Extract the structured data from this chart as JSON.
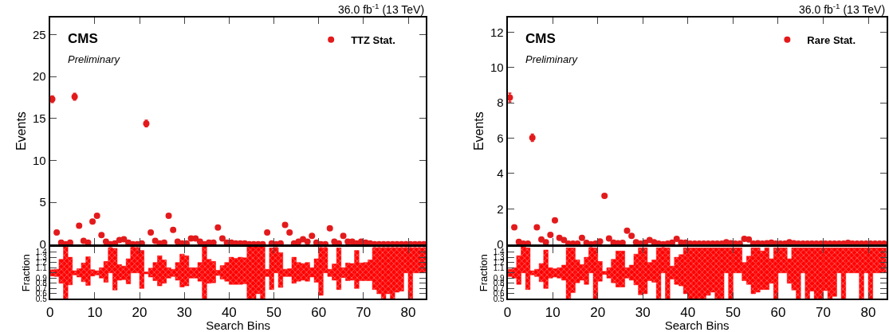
{
  "chart_data": [
    {
      "type": "scatter",
      "title": "36.0 fb$^{-1}$ (13 TeV)",
      "ylabel": "Events",
      "annotations": [
        "CMS",
        "Preliminary"
      ],
      "marker": "circle",
      "legend": "top right",
      "tick_labels": "y",
      "xlim": [
        0,
        84
      ],
      "xticks": [
        0,
        10,
        20,
        30,
        40,
        50,
        60,
        70,
        80
      ],
      "ylim": [
        0,
        27
      ],
      "yticks": [
        0,
        5,
        10,
        15,
        20,
        25
      ],
      "x": [
        0.5,
        1.5,
        2.5,
        3.5,
        4.5,
        5.5,
        6.5,
        7.5,
        8.5,
        9.5,
        10.5,
        11.5,
        12.5,
        13.5,
        14.5,
        15.5,
        16.5,
        17.5,
        18.5,
        19.5,
        20.5,
        21.5,
        22.5,
        23.5,
        24.5,
        25.5,
        26.5,
        27.5,
        28.5,
        29.5,
        30.5,
        31.5,
        32.5,
        33.5,
        34.5,
        35.5,
        36.5,
        37.5,
        38.5,
        39.5,
        40.5,
        41.5,
        42.5,
        43.5,
        44.5,
        45.5,
        46.5,
        47.5,
        48.5,
        49.5,
        50.5,
        51.5,
        52.5,
        53.5,
        54.5,
        55.5,
        56.5,
        57.5,
        58.5,
        59.5,
        60.5,
        61.5,
        62.5,
        63.5,
        64.5,
        65.5,
        66.5,
        67.5,
        68.5,
        69.5,
        70.5,
        71.5,
        72.5,
        73.5,
        74.5,
        75.5,
        76.5,
        77.5,
        78.5,
        79.5,
        80.5,
        81.5,
        82.5,
        83.5
      ],
      "series": [
        {
          "name": "TTZ Stat.",
          "color": "#e31a1c",
          "values": [
            17.3,
            1.4,
            0.2,
            0,
            0.2,
            17.6,
            2.2,
            0.4,
            0.2,
            2.7,
            3.4,
            1.1,
            0.3,
            0,
            0.1,
            0.5,
            0.6,
            0.2,
            0,
            0,
            0.1,
            14.4,
            1.4,
            0.4,
            0.1,
            0.2,
            3.4,
            1.7,
            0.3,
            0.1,
            0.1,
            0.7,
            0.7,
            0.3,
            0,
            0.2,
            0.2,
            2.0,
            0.7,
            0.2,
            0.2,
            0.1,
            0.1,
            0.1,
            0,
            0,
            0,
            0,
            1.4,
            0.1,
            0,
            0.1,
            2.3,
            1.4,
            0.1,
            0.3,
            0.6,
            0.3,
            1.0,
            0.2,
            0,
            0,
            1.9,
            0.3,
            0.1,
            1.0,
            0.3,
            0.3,
            0.1,
            0.3,
            0.2,
            0.1,
            0,
            0,
            0,
            0,
            0,
            0,
            0,
            0,
            0,
            0,
            0,
            0
          ],
          "errors": [
            0.4,
            null,
            null,
            null,
            null,
            0.4,
            null,
            null,
            null,
            null,
            null,
            null,
            null,
            null,
            null,
            null,
            null,
            null,
            null,
            null,
            null,
            0.4,
            null,
            null,
            null,
            null,
            null,
            null,
            null,
            null,
            null,
            null,
            null,
            null,
            null,
            null,
            null,
            null,
            null,
            null,
            null,
            null,
            null,
            null,
            null,
            null,
            null,
            null,
            null,
            null,
            null,
            null,
            null,
            null,
            null,
            null,
            null,
            null,
            null,
            null,
            null,
            null,
            null,
            null,
            null,
            null,
            null,
            null,
            null,
            null,
            null,
            null,
            null,
            null,
            null,
            null,
            null,
            null,
            null,
            null,
            null,
            null,
            null,
            null
          ]
        }
      ]
    },
    {
      "type": "bar",
      "xlabel": "Search Bins",
      "ylabel": "Fraction",
      "xlim": [
        0,
        84
      ],
      "xticks": [
        0,
        10,
        20,
        30,
        40,
        50,
        60,
        70,
        80
      ],
      "ylim": [
        0.5,
        1.5
      ],
      "yticks": [
        0.5,
        0.6,
        0.7,
        0.8,
        0.9,
        {
          "value": 1,
          "label": null
        },
        1.1,
        1.2,
        1.3,
        1.4
      ],
      "x": [
        0.5,
        1.5,
        2.5,
        3.5,
        4.5,
        5.5,
        6.5,
        7.5,
        8.5,
        9.5,
        10.5,
        11.5,
        12.5,
        13.5,
        14.5,
        15.5,
        16.5,
        17.5,
        18.5,
        19.5,
        20.5,
        21.5,
        22.5,
        23.5,
        24.5,
        25.5,
        26.5,
        27.5,
        28.5,
        29.5,
        30.5,
        31.5,
        32.5,
        33.5,
        34.5,
        35.5,
        36.5,
        37.5,
        38.5,
        39.5,
        40.5,
        41.5,
        42.5,
        43.5,
        44.5,
        45.5,
        46.5,
        47.5,
        48.5,
        49.5,
        50.5,
        51.5,
        52.5,
        53.5,
        54.5,
        55.5,
        56.5,
        57.5,
        58.5,
        59.5,
        60.5,
        61.5,
        62.5,
        63.5,
        64.5,
        65.5,
        66.5,
        67.5,
        68.5,
        69.5,
        70.5,
        71.5,
        72.5,
        73.5,
        74.5,
        75.5,
        76.5,
        77.5,
        78.5,
        79.5,
        80.5,
        81.5,
        82.5,
        83.5
      ],
      "color": "#ff0000",
      "base": [
        0.94,
        0.93,
        0.8,
        0.5,
        0.77,
        0.96,
        0.92,
        0.83,
        0.76,
        0.94,
        0.96,
        0.9,
        0.82,
        1.0,
        0.67,
        0.86,
        0.87,
        0.79,
        1.0,
        1.0,
        0.7,
        0.98,
        0.92,
        0.85,
        0.75,
        0.8,
        0.9,
        0.93,
        0.86,
        0.73,
        0.75,
        0.9,
        0.9,
        0.84,
        0.5,
        0.8,
        0.81,
        0.95,
        0.88,
        0.84,
        0.78,
        0.78,
        0.78,
        0.79,
        0.5,
        0.5,
        0.6,
        0.5,
        0.93,
        0.68,
        1.0,
        0.72,
        0.93,
        0.93,
        0.8,
        0.84,
        0.86,
        0.84,
        0.92,
        0.82,
        0.57,
        1.0,
        0.93,
        0.86,
        0.68,
        0.91,
        0.85,
        0.86,
        0.7,
        0.85,
        0.85,
        0.85,
        0.68,
        0.6,
        0.5,
        0.6,
        0.5,
        0.63,
        0.65,
        1.0,
        0.5,
        1.0,
        1.0,
        1.0
      ],
      "values": [
        0.12,
        0.14,
        0.46,
        1.0,
        0.53,
        0.08,
        0.16,
        0.36,
        0.55,
        0.12,
        0.08,
        0.2,
        0.4,
        0.48,
        0.8,
        0.3,
        0.26,
        0.48,
        0.49,
        0.48,
        0.73,
        0.04,
        0.17,
        0.35,
        0.58,
        0.45,
        0.2,
        0.14,
        0.34,
        0.63,
        0.58,
        0.2,
        0.2,
        0.36,
        1.0,
        0.46,
        0.41,
        0.1,
        0.26,
        0.36,
        0.52,
        0.5,
        0.52,
        0.5,
        1.0,
        1.0,
        0.9,
        1.0,
        0.14,
        0.8,
        0.48,
        0.67,
        0.14,
        0.15,
        0.5,
        0.36,
        0.32,
        0.36,
        0.18,
        0.45,
        0.91,
        0.48,
        0.14,
        0.31,
        0.8,
        0.19,
        0.34,
        0.32,
        0.73,
        0.34,
        0.35,
        0.4,
        0.8,
        0.88,
        0.98,
        0.88,
        0.98,
        0.85,
        0.83,
        0.48,
        0.98,
        0.48,
        0.48,
        0.48
      ]
    },
    {
      "type": "scatter",
      "title": "36.0 fb$^{-1}$ (13 TeV)",
      "ylabel": "Events",
      "annotations": [
        "CMS",
        "Preliminary"
      ],
      "marker": "circle",
      "legend": "top right",
      "tick_labels": "y",
      "xlim": [
        0,
        84
      ],
      "xticks": [
        0,
        10,
        20,
        30,
        40,
        50,
        60,
        70,
        80
      ],
      "ylim": [
        0,
        12.8
      ],
      "yticks": [
        0,
        2,
        4,
        6,
        8,
        10,
        12
      ],
      "x": [
        0.5,
        1.5,
        2.5,
        3.5,
        4.5,
        5.5,
        6.5,
        7.5,
        8.5,
        9.5,
        10.5,
        11.5,
        12.5,
        13.5,
        14.5,
        15.5,
        16.5,
        17.5,
        18.5,
        19.5,
        20.5,
        21.5,
        22.5,
        23.5,
        24.5,
        25.5,
        26.5,
        27.5,
        28.5,
        29.5,
        30.5,
        31.5,
        32.5,
        33.5,
        34.5,
        35.5,
        36.5,
        37.5,
        38.5,
        39.5,
        40.5,
        41.5,
        42.5,
        43.5,
        44.5,
        45.5,
        46.5,
        47.5,
        48.5,
        49.5,
        50.5,
        51.5,
        52.5,
        53.5,
        54.5,
        55.5,
        56.5,
        57.5,
        58.5,
        59.5,
        60.5,
        61.5,
        62.5,
        63.5,
        64.5,
        65.5,
        66.5,
        67.5,
        68.5,
        69.5,
        70.5,
        71.5,
        72.5,
        73.5,
        74.5,
        75.5,
        76.5,
        77.5,
        78.5,
        79.5,
        80.5,
        81.5,
        82.5,
        83.5
      ],
      "series": [
        {
          "name": "Rare Stat.",
          "color": "#e31a1c",
          "values": [
            8.3,
            0.96,
            0.14,
            0.03,
            0.03,
            6.02,
            0.96,
            0.27,
            0.11,
            0.53,
            1.35,
            0.36,
            0.24,
            0.03,
            0.03,
            0.03,
            0.36,
            0.08,
            0,
            0.03,
            0.16,
            2.74,
            0.33,
            0.09,
            0.06,
            0.08,
            0.77,
            0.47,
            0.11,
            0.03,
            0.09,
            0.24,
            0.11,
            0.03,
            0,
            0.03,
            0.09,
            0.3,
            0.09,
            0.09,
            0.03,
            0.03,
            0.03,
            0.03,
            0.03,
            0.03,
            0.03,
            0.03,
            0.11,
            0.06,
            0.03,
            0.03,
            0.3,
            0.27,
            0.03,
            0.06,
            0.03,
            0.06,
            0.09,
            0.03,
            0.03,
            0.03,
            0.11,
            0.06,
            0.03,
            0.03,
            0.03,
            0.03,
            0.03,
            0.03,
            0.03,
            0.03,
            0.03,
            0.03,
            0.03,
            0.08,
            0.03,
            0.03,
            0.03,
            0.03,
            0.03,
            0.03,
            0.03,
            0.03
          ],
          "errors": [
            0.25,
            null,
            null,
            null,
            null,
            0.2,
            null,
            null,
            null,
            null,
            null,
            null,
            null,
            null,
            null,
            null,
            null,
            null,
            null,
            null,
            null,
            null,
            null,
            null,
            null,
            null,
            null,
            null,
            null,
            null,
            null,
            null,
            null,
            null,
            null,
            null,
            null,
            null,
            null,
            null,
            null,
            null,
            null,
            null,
            null,
            null,
            null,
            null,
            null,
            null,
            null,
            null,
            null,
            null,
            null,
            null,
            null,
            null,
            null,
            null,
            null,
            null,
            null,
            null,
            null,
            null,
            null,
            null,
            null,
            null,
            null,
            null,
            null,
            null,
            null,
            null,
            null,
            null,
            null,
            null,
            null,
            null,
            null,
            null
          ]
        }
      ]
    },
    {
      "type": "bar",
      "xlabel": "Search Bins",
      "ylabel": "Fraction",
      "xlim": [
        0,
        84
      ],
      "xticks": [
        0,
        10,
        20,
        30,
        40,
        50,
        60,
        70,
        80
      ],
      "ylim": [
        0.5,
        1.5
      ],
      "yticks": [
        0.5,
        0.6,
        0.7,
        0.8,
        0.9,
        {
          "value": 1,
          "label": null
        },
        1.1,
        1.2,
        1.3,
        1.4
      ],
      "x": [
        0.5,
        1.5,
        2.5,
        3.5,
        4.5,
        5.5,
        6.5,
        7.5,
        8.5,
        9.5,
        10.5,
        11.5,
        12.5,
        13.5,
        14.5,
        15.5,
        16.5,
        17.5,
        18.5,
        19.5,
        20.5,
        21.5,
        22.5,
        23.5,
        24.5,
        25.5,
        26.5,
        27.5,
        28.5,
        29.5,
        30.5,
        31.5,
        32.5,
        33.5,
        34.5,
        35.5,
        36.5,
        37.5,
        38.5,
        39.5,
        40.5,
        41.5,
        42.5,
        43.5,
        44.5,
        45.5,
        46.5,
        47.5,
        48.5,
        49.5,
        50.5,
        51.5,
        52.5,
        53.5,
        54.5,
        55.5,
        56.5,
        57.5,
        58.5,
        59.5,
        60.5,
        61.5,
        62.5,
        63.5,
        64.5,
        65.5,
        66.5,
        67.5,
        68.5,
        69.5,
        70.5,
        71.5,
        72.5,
        73.5,
        74.5,
        75.5,
        76.5,
        77.5,
        78.5,
        79.5,
        80.5,
        81.5,
        82.5,
        83.5
      ],
      "color": "#ff0000",
      "base": [
        0.93,
        0.9,
        0.78,
        1.0,
        0.68,
        0.96,
        0.93,
        0.83,
        0.7,
        0.9,
        0.92,
        0.9,
        0.86,
        0.5,
        0.62,
        0.81,
        0.86,
        0.78,
        1.0,
        0.5,
        0.84,
        0.97,
        0.9,
        0.81,
        0.73,
        0.73,
        0.9,
        0.86,
        0.77,
        0.58,
        0.6,
        0.85,
        0.82,
        0.5,
        1.0,
        0.5,
        0.88,
        0.78,
        0.75,
        0.6,
        0.5,
        0.5,
        0.5,
        0.5,
        0.57,
        0.63,
        0.5,
        0.5,
        1.0,
        0.5,
        1.0,
        1.0,
        0.85,
        0.78,
        0.6,
        0.63,
        0.68,
        0.68,
        0.8,
        0.5,
        1.0,
        1.0,
        0.8,
        0.67,
        0.5,
        1.0,
        0.5,
        0.65,
        0.5,
        0.5,
        0.66,
        0.5,
        0.55,
        1.0,
        0.5,
        1.0,
        1.0,
        1.0,
        0.5,
        1.0,
        0.5,
        1.0,
        1.0,
        1.0
      ],
      "values": [
        0.14,
        0.2,
        0.55,
        0.5,
        0.8,
        0.08,
        0.14,
        0.35,
        0.74,
        0.2,
        0.16,
        0.2,
        0.29,
        0.98,
        0.86,
        0.44,
        0.3,
        0.52,
        0.48,
        0.98,
        0.38,
        0.06,
        0.2,
        0.45,
        0.69,
        0.69,
        0.2,
        0.29,
        0.59,
        0.9,
        0.88,
        0.35,
        0.43,
        0.98,
        0.48,
        0.98,
        0.25,
        0.52,
        0.6,
        0.88,
        0.98,
        0.98,
        0.98,
        0.98,
        0.91,
        0.85,
        0.98,
        0.98,
        0.48,
        0.98,
        0.48,
        0.48,
        0.35,
        0.54,
        0.88,
        0.85,
        0.74,
        0.8,
        0.47,
        0.98,
        0.48,
        0.48,
        0.47,
        0.81,
        0.98,
        0.48,
        0.98,
        0.83,
        0.98,
        0.98,
        0.82,
        0.98,
        0.93,
        0.48,
        0.98,
        0.48,
        0.48,
        0.48,
        0.98,
        0.48,
        0.98,
        0.48,
        0.48,
        0.48
      ]
    }
  ]
}
